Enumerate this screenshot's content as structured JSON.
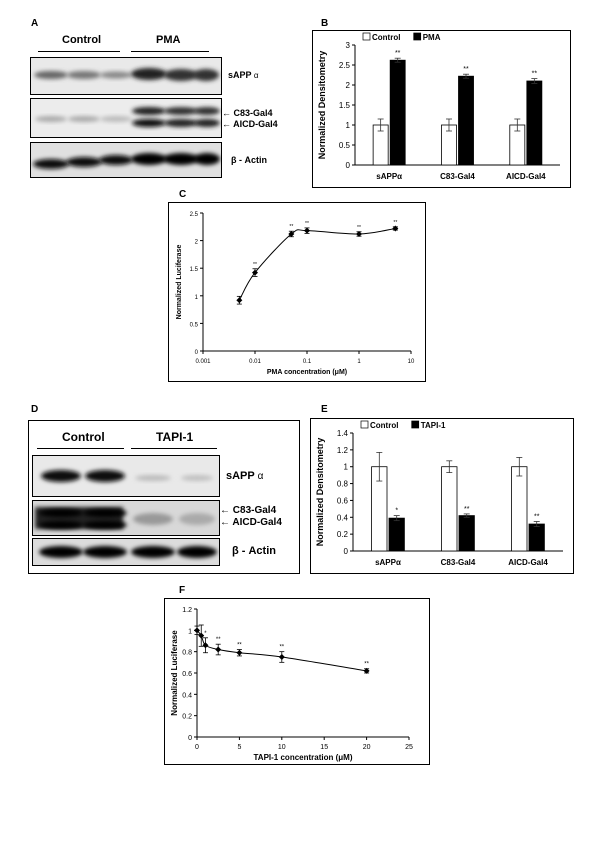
{
  "panels": {
    "A": {
      "letter": "A",
      "groups": [
        "Control",
        "PMA"
      ],
      "bands": [
        "sAPP",
        "C83-Gal4",
        "AICD-Gal4",
        "β - Actin"
      ],
      "alpha": "α"
    },
    "B": {
      "letter": "B"
    },
    "C": {
      "letter": "C"
    },
    "D": {
      "letter": "D",
      "groups": [
        "Control",
        "TAPI-1"
      ],
      "bands": [
        "sAPP",
        "C83-Gal4",
        "AICD-Gal4",
        "β - Actin"
      ],
      "alpha": "α"
    },
    "E": {
      "letter": "E"
    },
    "F": {
      "letter": "F"
    }
  },
  "chart_data": [
    {
      "id": "B",
      "type": "bar",
      "categories": [
        "sAPPα",
        "C83-Gal4",
        "AICD-Gal4"
      ],
      "series": [
        {
          "name": "Control",
          "values": [
            1.0,
            1.0,
            1.0
          ],
          "errors": [
            0.15,
            0.15,
            0.15
          ],
          "color": "#ffffff"
        },
        {
          "name": "PMA",
          "values": [
            2.62,
            2.22,
            2.1
          ],
          "errors": [
            0.05,
            0.05,
            0.06
          ],
          "color": "#000000"
        }
      ],
      "annotations": [
        "",
        "**",
        "",
        "**",
        "",
        "**"
      ],
      "ylabel": "Normalized Densitometry",
      "ylim": [
        0,
        3
      ],
      "yticks": [
        "0",
        "0.5",
        "1",
        "1.5",
        "2",
        "2.5",
        "3"
      ],
      "legend": "top"
    },
    {
      "id": "C",
      "type": "line",
      "x": [
        0.005,
        0.01,
        0.05,
        0.1,
        1,
        5
      ],
      "y": [
        0.92,
        1.42,
        2.12,
        2.18,
        2.12,
        2.22
      ],
      "errors": [
        0.07,
        0.07,
        0.05,
        0.05,
        0.04,
        0.03
      ],
      "annotations": [
        "",
        "**",
        "**",
        "**",
        "**",
        "**"
      ],
      "xscale": "log",
      "xlim": [
        0.001,
        10
      ],
      "xticks": [
        "0.001",
        "0.01",
        "0.1",
        "1",
        "10"
      ],
      "ylim": [
        0,
        2.5
      ],
      "yticks": [
        "0",
        "0.5",
        "1",
        "1.5",
        "2",
        "2.5"
      ],
      "xlabel": "PMA concentration (μM)",
      "ylabel": "Normalized Luciferase"
    },
    {
      "id": "E",
      "type": "bar",
      "categories": [
        "sAPPα",
        "C83-Gal4",
        "AICD-Gal4"
      ],
      "series": [
        {
          "name": "Control",
          "values": [
            1.0,
            1.0,
            1.0
          ],
          "errors": [
            0.17,
            0.07,
            0.11
          ],
          "color": "#ffffff"
        },
        {
          "name": "TAPI-1",
          "values": [
            0.39,
            0.42,
            0.32
          ],
          "errors": [
            0.03,
            0.02,
            0.03
          ],
          "color": "#000000"
        }
      ],
      "annotations": [
        "",
        "*",
        "",
        "**",
        "",
        "**"
      ],
      "ylabel": "Normalized Densitometry",
      "ylim": [
        0,
        1.4
      ],
      "yticks": [
        "0",
        "0.2",
        "0.4",
        "0.6",
        "0.8",
        "1",
        "1.2",
        "1.4"
      ],
      "legend": "top"
    },
    {
      "id": "F",
      "type": "line",
      "x": [
        0,
        0.5,
        1,
        2.5,
        5,
        10,
        20
      ],
      "y": [
        1.0,
        0.95,
        0.86,
        0.82,
        0.79,
        0.75,
        0.62
      ],
      "errors": [
        0.04,
        0.1,
        0.07,
        0.05,
        0.03,
        0.05,
        0.02
      ],
      "annotations": [
        "",
        "",
        "*",
        "**",
        "**",
        "**",
        "**"
      ],
      "xlim": [
        0,
        25
      ],
      "xticks": [
        "0",
        "5",
        "10",
        "15",
        "20",
        "25"
      ],
      "ylim": [
        0,
        1.2
      ],
      "yticks": [
        "0",
        "0.2",
        "0.4",
        "0.6",
        "0.8",
        "1",
        "1.2"
      ],
      "xlabel": "TAPI-1 concentration (μM)",
      "ylabel": "Normalized Luciferase"
    }
  ]
}
